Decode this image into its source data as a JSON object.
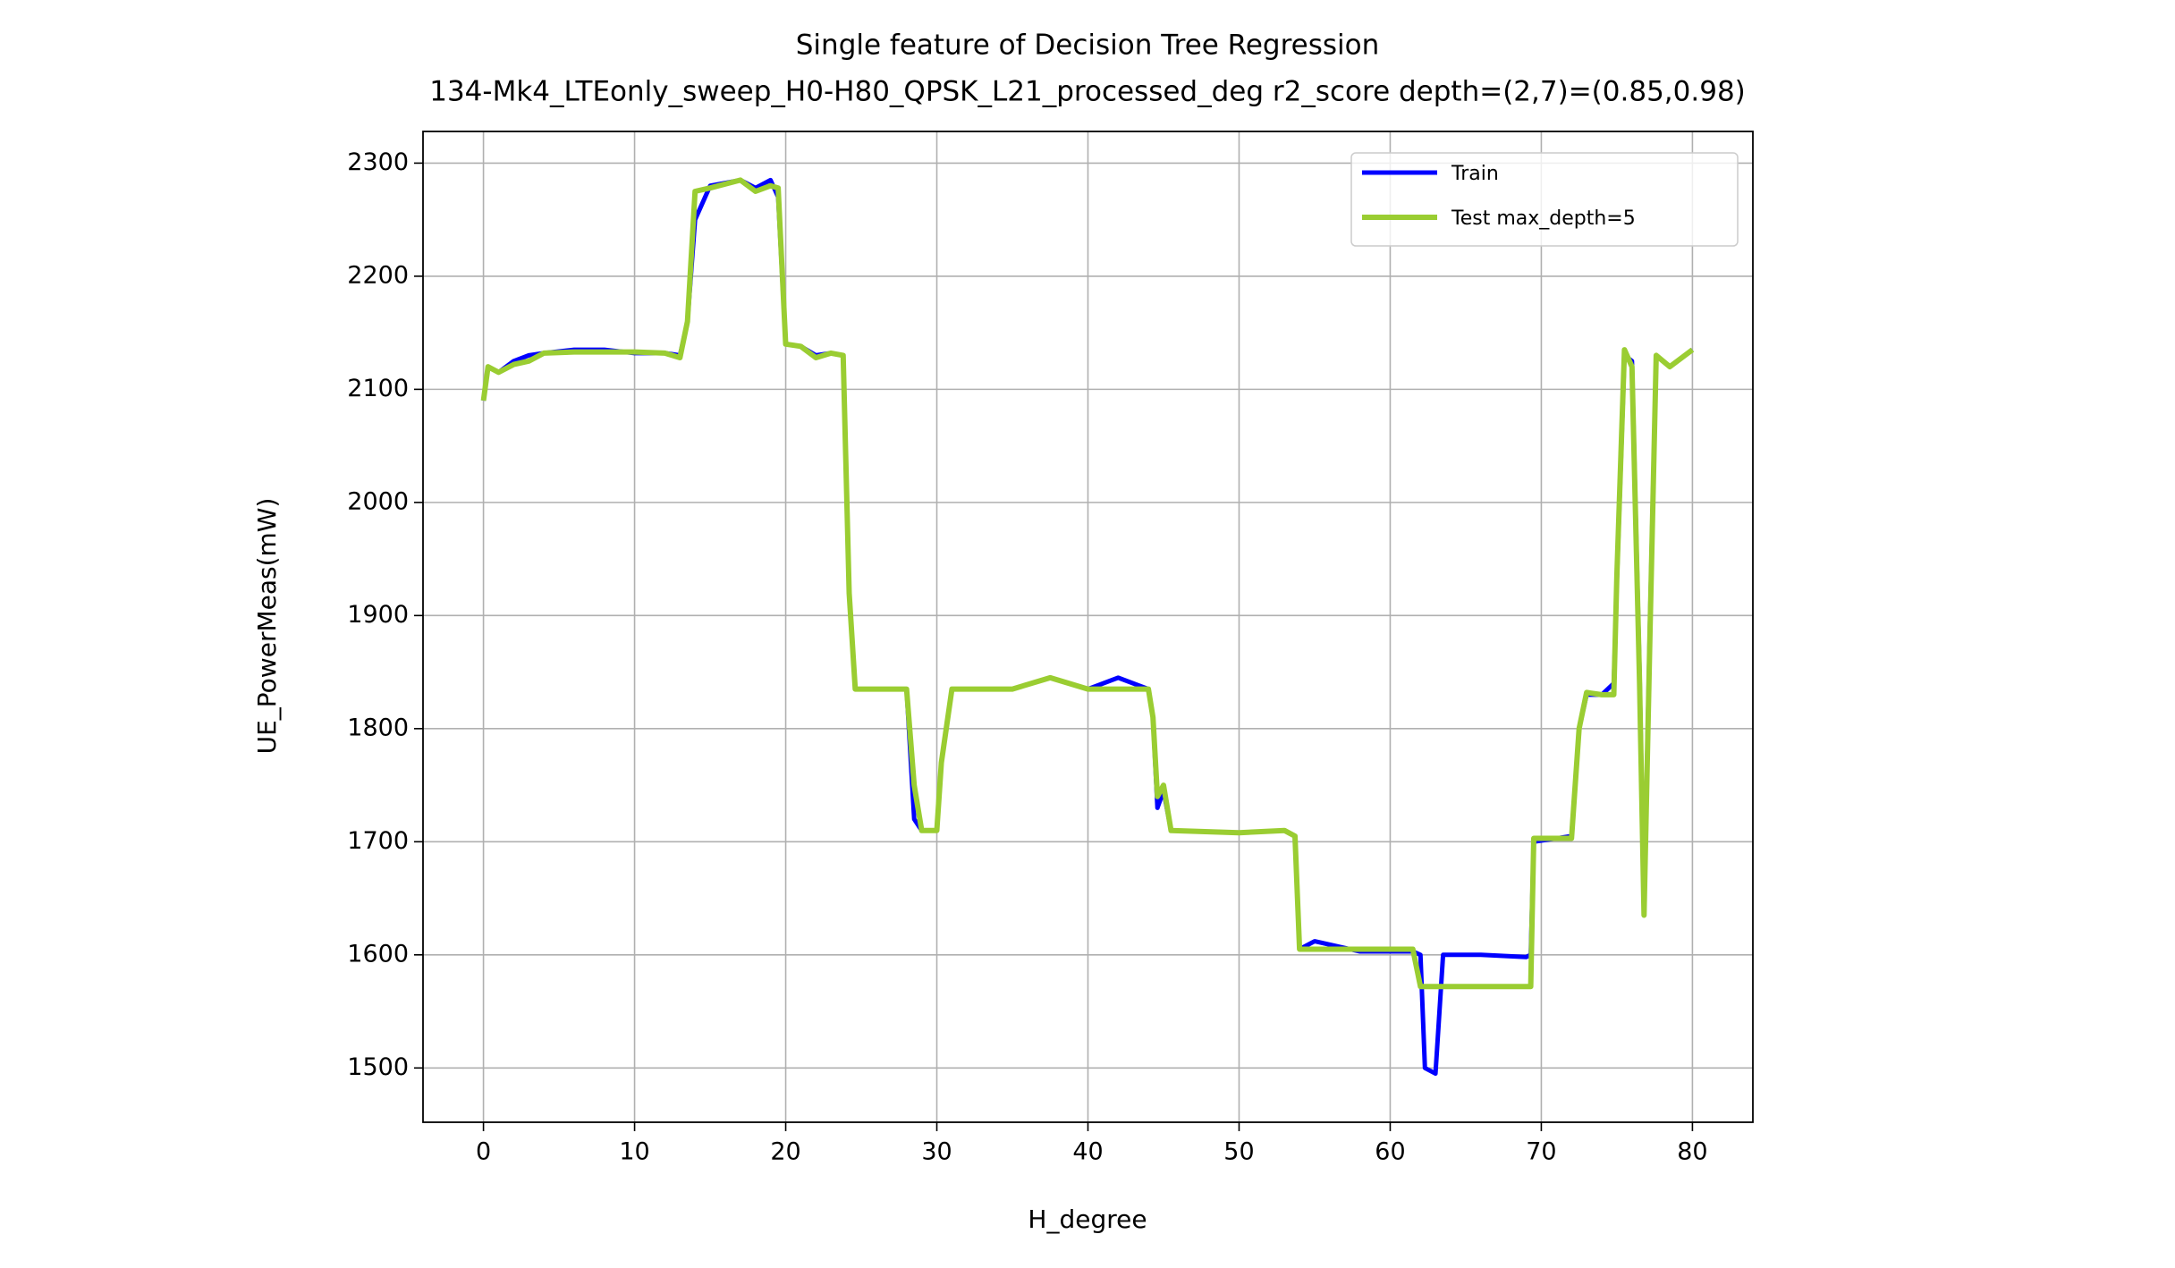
{
  "chart_data": {
    "type": "line",
    "title": "Single feature of Decision Tree Regression",
    "subtitle": "134-Mk4_LTEonly_sweep_H0-H80_QPSK_L21_processed_deg r2_score depth=(2,7)=(0.85,0.98)",
    "x_label": "H_degree",
    "y_label": "UE_PowerMeas(mW)",
    "x": [
      0,
      0.3,
      1,
      2,
      3,
      4,
      6,
      8,
      10,
      12,
      13,
      13.5,
      14,
      15,
      17,
      18,
      19,
      19.5,
      20,
      21,
      22,
      23,
      23.8,
      24.2,
      24.6,
      26,
      28,
      28.5,
      29,
      30,
      30.3,
      31,
      35,
      37.5,
      40,
      42,
      44,
      44.3,
      44.6,
      45,
      45.5,
      50,
      53,
      53.7,
      54,
      55,
      58,
      61.5,
      62,
      62.3,
      63,
      63.5,
      66,
      69,
      69.3,
      69.5,
      72,
      72.5,
      73,
      74,
      74.8,
      75,
      75.5,
      76,
      76.5,
      76.8,
      77.2,
      77.6,
      78.5,
      80
    ],
    "series": [
      {
        "name": "Train",
        "color": "#0000ff",
        "values": [
          2090,
          2120,
          2115,
          2125,
          2130,
          2132,
          2135,
          2135,
          2132,
          2132,
          2130,
          2160,
          2250,
          2280,
          2285,
          2278,
          2285,
          2270,
          2140,
          2138,
          2130,
          2132,
          2130,
          1920,
          1835,
          1835,
          1835,
          1720,
          1710,
          1710,
          1770,
          1835,
          1835,
          1845,
          1835,
          1845,
          1835,
          1810,
          1730,
          1745,
          1710,
          1708,
          1710,
          1705,
          1605,
          1612,
          1603,
          1603,
          1600,
          1500,
          1495,
          1600,
          1600,
          1598,
          1600,
          1700,
          1705,
          1800,
          1830,
          1830,
          1840,
          1930,
          2130,
          2125,
          1850,
          1640,
          1900,
          2130,
          2120,
          2135
        ]
      },
      {
        "name": "Test max_depth=5",
        "color": "#9acd32",
        "values": [
          2090,
          2120,
          2115,
          2122,
          2125,
          2132,
          2133,
          2133,
          2133,
          2132,
          2128,
          2160,
          2275,
          2278,
          2285,
          2275,
          2280,
          2278,
          2140,
          2138,
          2128,
          2132,
          2130,
          1920,
          1835,
          1835,
          1835,
          1750,
          1710,
          1710,
          1770,
          1835,
          1835,
          1845,
          1835,
          1835,
          1835,
          1810,
          1740,
          1750,
          1710,
          1708,
          1710,
          1705,
          1605,
          1605,
          1605,
          1605,
          1572,
          1572,
          1572,
          1572,
          1572,
          1572,
          1572,
          1703,
          1703,
          1800,
          1832,
          1830,
          1830,
          1935,
          2135,
          2120,
          1840,
          1635,
          1890,
          2130,
          2120,
          2135
        ]
      }
    ],
    "xlim": [
      -4,
      84
    ],
    "xticks": [
      0,
      10,
      20,
      30,
      40,
      50,
      60,
      70,
      80
    ],
    "ylim": [
      1452,
      2328
    ],
    "yticks": [
      1500,
      1600,
      1700,
      1800,
      1900,
      2000,
      2100,
      2200,
      2300
    ],
    "grid": true,
    "legend": "upper right"
  }
}
